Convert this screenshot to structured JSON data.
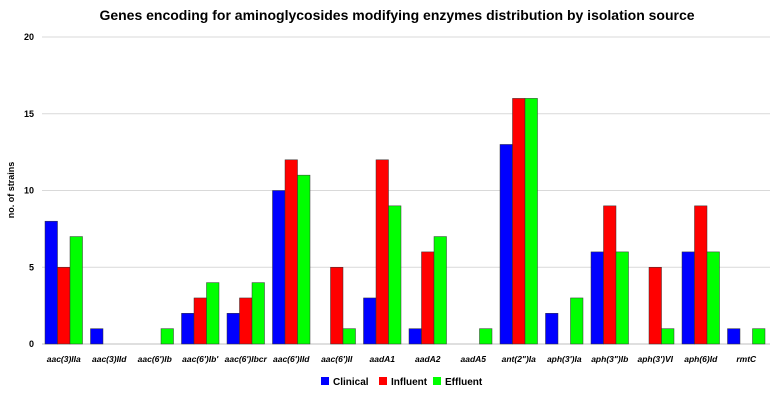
{
  "chart_data": {
    "type": "bar",
    "title": "Genes encoding for aminoglycosides modifying enzymes distribution by isolation source",
    "xlabel": "",
    "ylabel": "no. of strains",
    "ylim": [
      0,
      20
    ],
    "yticks": [
      0,
      5,
      10,
      15,
      20
    ],
    "grid": true,
    "legend_position": "bottom",
    "categories": [
      "aac(3)IIa",
      "aac(3)IId",
      "aac(6')Ib",
      "aac(6')Ib'",
      "aac(6')Ibcr",
      "aac(6')IId",
      "aac(6')II",
      "aadA1",
      "aadA2",
      "aadA5",
      "ant(2\")Ia",
      "aph(3')Ia",
      "aph(3\")Ib",
      "aph(3')VI",
      "aph(6)Id",
      "rmtC"
    ],
    "series": [
      {
        "name": "Clinical",
        "color": "#0000ff",
        "values": [
          8,
          1,
          0,
          2,
          2,
          10,
          0,
          3,
          1,
          0,
          13,
          2,
          6,
          0,
          6,
          1
        ]
      },
      {
        "name": "Influent",
        "color": "#ff0000",
        "values": [
          5,
          0,
          0,
          3,
          3,
          12,
          5,
          12,
          6,
          0,
          16,
          0,
          9,
          5,
          9,
          0
        ]
      },
      {
        "name": "Effluent",
        "color": "#00ff00",
        "values": [
          7,
          0,
          1,
          4,
          4,
          11,
          1,
          9,
          7,
          1,
          16,
          3,
          6,
          1,
          6,
          1
        ]
      }
    ]
  }
}
